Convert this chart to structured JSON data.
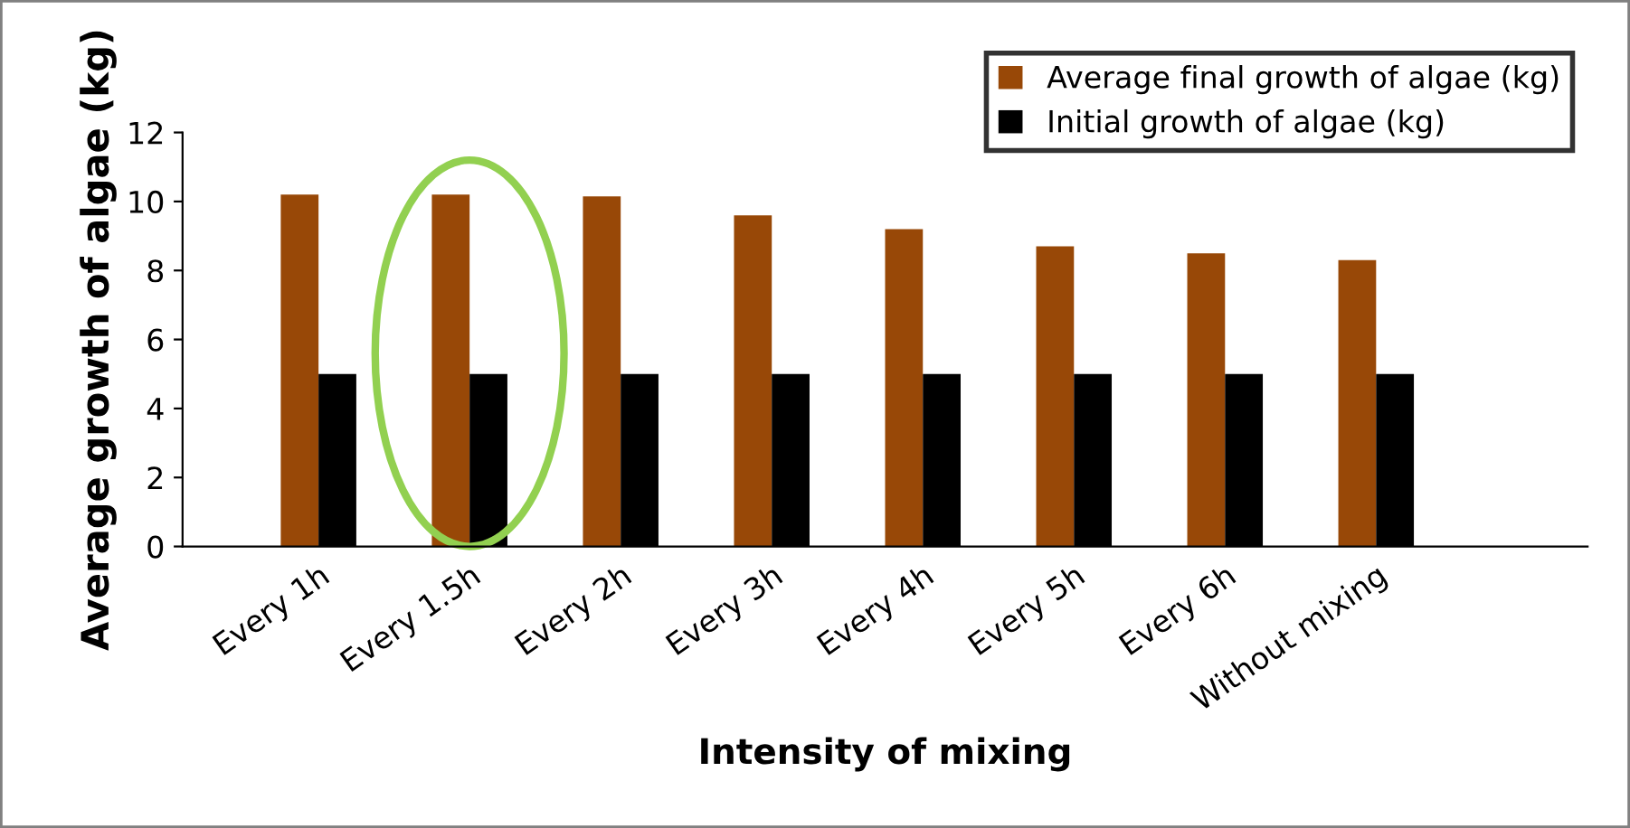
{
  "chart_data": {
    "type": "bar",
    "xlabel": "Intensity of mixing",
    "ylabel": "Average growth of algae (kg)",
    "categories": [
      "Every 1h",
      "Every 1.5h",
      "Every 2h",
      "Every 3h",
      "Every 4h",
      "Every 5h",
      "Every 6h",
      "Without mixing"
    ],
    "series": [
      {
        "name": "Average final growth of algae (kg)",
        "color": "#984807",
        "values": [
          10.2,
          10.2,
          10.15,
          9.6,
          9.2,
          8.7,
          8.5,
          8.3
        ]
      },
      {
        "name": "Initial growth of algae (kg)",
        "color": "#000000",
        "values": [
          5,
          5,
          5,
          5,
          5,
          5,
          5,
          5
        ]
      }
    ],
    "ylim": [
      0,
      12
    ],
    "yticks": [
      0,
      2,
      4,
      6,
      8,
      10,
      12
    ],
    "grid": false,
    "legend": "top right"
  }
}
